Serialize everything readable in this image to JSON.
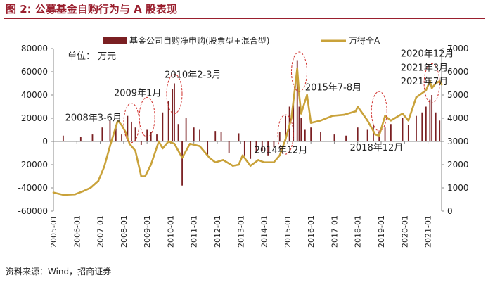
{
  "header": {
    "title": "图 2:  公募基金自购行为与 A 股表现",
    "source": "资料来源：Wind，招商证券"
  },
  "colors": {
    "title": "#9a1f2e",
    "bars": "#7a1f22",
    "line": "#c9a23a",
    "ellipse": "#d0312d"
  },
  "chart_data": {
    "type": "bar+line",
    "unit_label": "单位： 万元",
    "legend": [
      "基金公司自购净申购(股票型+混合型)",
      "万得全A"
    ],
    "legend_placement": "top",
    "x_start": "2005-01",
    "x_end": "2021-08",
    "x_ticks": [
      "2005-01",
      "2006-01",
      "2007-01",
      "2008-01",
      "2009-01",
      "2010-01",
      "2011-01",
      "2012-01",
      "2013-01",
      "2014-01",
      "2015-01",
      "2016-01",
      "2017-01",
      "2018-01",
      "2019-01",
      "2020-01",
      "2021-01"
    ],
    "y_left": {
      "min": -60000,
      "max": 80000,
      "ticks": [
        -60000,
        -40000,
        -20000,
        0,
        20000,
        40000,
        60000,
        80000
      ]
    },
    "y_right": {
      "min": 0,
      "max": 7000,
      "ticks": [
        0,
        1000,
        2000,
        3000,
        4000,
        5000,
        6000,
        7000
      ]
    },
    "series": [
      {
        "name": "基金公司自购净申购(股票型+混合型)",
        "type": "bar",
        "axis": "left",
        "points": [
          [
            "2005-06",
            5000
          ],
          [
            "2006-03",
            4000
          ],
          [
            "2006-09",
            6000
          ],
          [
            "2007-02",
            12000
          ],
          [
            "2007-06",
            18000
          ],
          [
            "2007-09",
            14000
          ],
          [
            "2007-12",
            6000
          ],
          [
            "2008-03",
            22000
          ],
          [
            "2008-05",
            17000
          ],
          [
            "2008-07",
            12000
          ],
          [
            "2008-10",
            -3000
          ],
          [
            "2009-01",
            10000
          ],
          [
            "2009-03",
            8000
          ],
          [
            "2009-06",
            6000
          ],
          [
            "2009-09",
            25000
          ],
          [
            "2009-12",
            35000
          ],
          [
            "2010-02",
            45000
          ],
          [
            "2010-03",
            50000
          ],
          [
            "2010-05",
            15000
          ],
          [
            "2010-07",
            -38000
          ],
          [
            "2010-09",
            20000
          ],
          [
            "2011-01",
            12000
          ],
          [
            "2011-04",
            10000
          ],
          [
            "2011-08",
            -12000
          ],
          [
            "2011-12",
            9000
          ],
          [
            "2012-03",
            8000
          ],
          [
            "2012-07",
            -10000
          ],
          [
            "2012-12",
            7000
          ],
          [
            "2013-03",
            -12000
          ],
          [
            "2013-06",
            -15000
          ],
          [
            "2013-09",
            -10000
          ],
          [
            "2013-12",
            -8000
          ],
          [
            "2014-03",
            -12000
          ],
          [
            "2014-06",
            -5000
          ],
          [
            "2014-09",
            8000
          ],
          [
            "2014-12",
            22000
          ],
          [
            "2015-02",
            30000
          ],
          [
            "2015-04",
            35000
          ],
          [
            "2015-06",
            70000
          ],
          [
            "2015-07",
            30000
          ],
          [
            "2015-08",
            20000
          ],
          [
            "2015-10",
            10000
          ],
          [
            "2016-01",
            12000
          ],
          [
            "2016-06",
            8000
          ],
          [
            "2017-01",
            6000
          ],
          [
            "2017-07",
            5000
          ],
          [
            "2018-01",
            12000
          ],
          [
            "2018-06",
            10000
          ],
          [
            "2018-09",
            14000
          ],
          [
            "2018-12",
            8000
          ],
          [
            "2019-03",
            12000
          ],
          [
            "2019-06",
            15000
          ],
          [
            "2019-12",
            20000
          ],
          [
            "2020-03",
            14000
          ],
          [
            "2020-07",
            22000
          ],
          [
            "2020-10",
            25000
          ],
          [
            "2020-12",
            30000
          ],
          [
            "2021-02",
            36000
          ],
          [
            "2021-03",
            40000
          ],
          [
            "2021-05",
            25000
          ],
          [
            "2021-07",
            18000
          ]
        ]
      },
      {
        "name": "万得全A",
        "type": "line",
        "axis": "right",
        "points": [
          [
            "2005-01",
            800
          ],
          [
            "2005-06",
            700
          ],
          [
            "2005-12",
            720
          ],
          [
            "2006-04",
            850
          ],
          [
            "2006-08",
            1000
          ],
          [
            "2006-12",
            1300
          ],
          [
            "2007-03",
            1900
          ],
          [
            "2007-06",
            2800
          ],
          [
            "2007-10",
            3900
          ],
          [
            "2007-12",
            3700
          ],
          [
            "2008-02",
            3400
          ],
          [
            "2008-04",
            2900
          ],
          [
            "2008-07",
            2600
          ],
          [
            "2008-10",
            1500
          ],
          [
            "2008-12",
            1500
          ],
          [
            "2009-03",
            2000
          ],
          [
            "2009-07",
            3000
          ],
          [
            "2009-09",
            2700
          ],
          [
            "2009-12",
            3000
          ],
          [
            "2010-03",
            2900
          ],
          [
            "2010-07",
            2300
          ],
          [
            "2010-11",
            2900
          ],
          [
            "2011-04",
            2800
          ],
          [
            "2011-09",
            2300
          ],
          [
            "2011-12",
            2100
          ],
          [
            "2012-04",
            2200
          ],
          [
            "2012-09",
            1950
          ],
          [
            "2012-12",
            2000
          ],
          [
            "2013-02",
            2400
          ],
          [
            "2013-06",
            1950
          ],
          [
            "2013-10",
            2200
          ],
          [
            "2014-01",
            2100
          ],
          [
            "2014-06",
            2100
          ],
          [
            "2014-09",
            2400
          ],
          [
            "2014-12",
            3100
          ],
          [
            "2015-03",
            4000
          ],
          [
            "2015-06",
            6150
          ],
          [
            "2015-07",
            5000
          ],
          [
            "2015-08",
            4200
          ],
          [
            "2015-11",
            5000
          ],
          [
            "2016-01",
            3800
          ],
          [
            "2016-06",
            3900
          ],
          [
            "2016-12",
            4100
          ],
          [
            "2017-06",
            4150
          ],
          [
            "2017-12",
            4300
          ],
          [
            "2018-01",
            4500
          ],
          [
            "2018-06",
            3900
          ],
          [
            "2018-10",
            3300
          ],
          [
            "2018-12",
            3250
          ],
          [
            "2019-03",
            4100
          ],
          [
            "2019-06",
            3900
          ],
          [
            "2019-12",
            4200
          ],
          [
            "2020-03",
            3900
          ],
          [
            "2020-07",
            4900
          ],
          [
            "2020-12",
            5200
          ],
          [
            "2021-02",
            5600
          ],
          [
            "2021-03",
            5300
          ],
          [
            "2021-05",
            5500
          ],
          [
            "2021-07",
            5600
          ],
          [
            "2021-08",
            5450
          ]
        ]
      }
    ],
    "annotations": [
      {
        "text": "2008年3-6月",
        "date": "2008-05",
        "value": 3800,
        "label_date": "2005-07",
        "label_value": 3900
      },
      {
        "text": "2009年1月",
        "date": "2009-01",
        "value": 4050,
        "label_date": "2007-08",
        "label_value": 4950
      },
      {
        "text": "2010年2-3月",
        "date": "2010-03",
        "value": 5050,
        "label_date": "2009-10",
        "label_value": 5750
      },
      {
        "text": "2014年12月",
        "date": "2014-12",
        "value": 3300,
        "label_date": "2013-08",
        "label_value": 2500
      },
      {
        "text": "2015年7-8月",
        "date": "2015-07",
        "value": 6000,
        "label_date": "2015-10",
        "label_value": 5200
      },
      {
        "text": "2018年12月",
        "date": "2018-12",
        "value": 4300,
        "label_date": "2017-09",
        "label_value": 2600
      },
      {
        "text": "2020年12月",
        "date": "2021-03",
        "value": 5500,
        "label_date": "2019-11",
        "label_value": 6650
      },
      {
        "text": "2021年3月",
        "date": "2021-03",
        "value": 5500,
        "label_date": "2019-11",
        "label_value": 6050
      },
      {
        "text": "2021年7月",
        "date": "2021-03",
        "value": 5500,
        "label_date": "2019-11",
        "label_value": 5450
      }
    ]
  }
}
